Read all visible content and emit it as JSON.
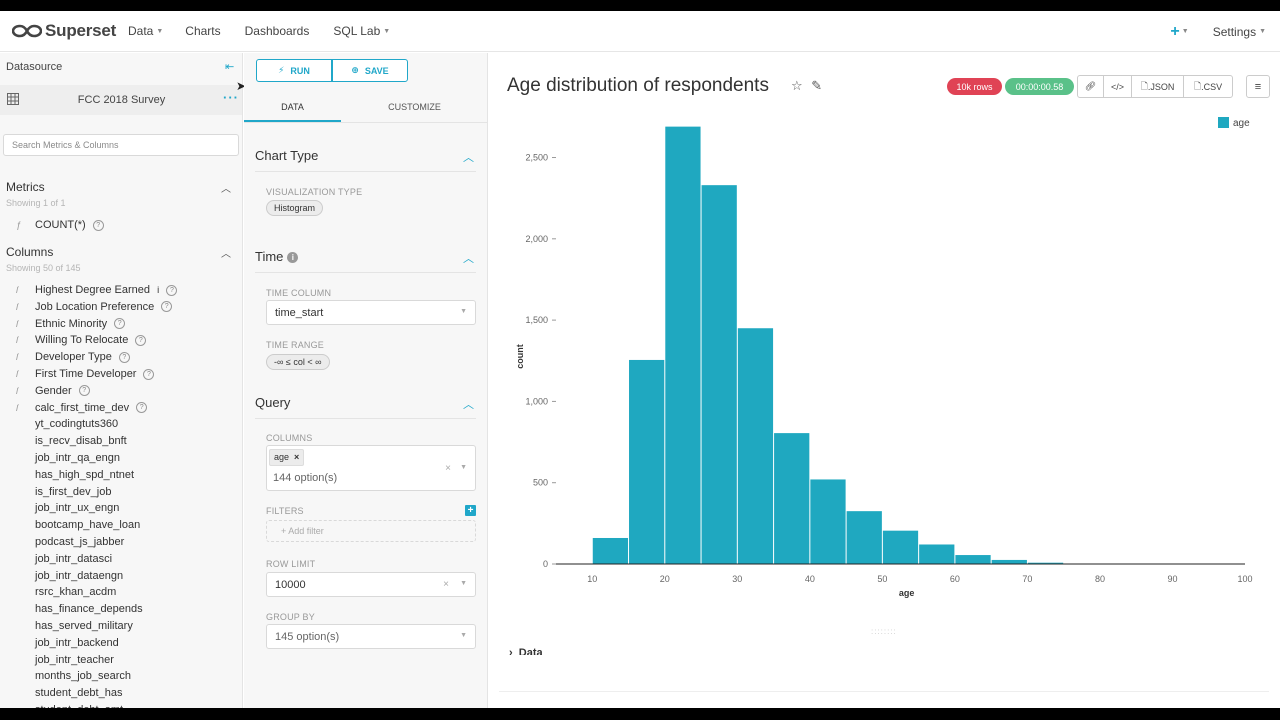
{
  "nav": {
    "brand": "Superset",
    "items": [
      {
        "label": "Data",
        "dropdown": true
      },
      {
        "label": "Charts",
        "dropdown": false
      },
      {
        "label": "Dashboards",
        "dropdown": false
      },
      {
        "label": "SQL Lab",
        "dropdown": true
      }
    ],
    "plus_label": "+",
    "settings_label": "Settings"
  },
  "datasource": {
    "header": "Datasource",
    "name": "FCC 2018 Survey",
    "search_placeholder": "Search Metrics & Columns",
    "metrics": {
      "title": "Metrics",
      "count_text": "Showing 1 of 1",
      "items": [
        "COUNT(*)"
      ]
    },
    "columns": {
      "title": "Columns",
      "count_text": "Showing 50 of 145",
      "items": [
        {
          "label": "Highest Degree Earned",
          "type": "string",
          "info": true,
          "help": true
        },
        {
          "label": "Job Location Preference",
          "type": "string",
          "info": false,
          "help": true
        },
        {
          "label": "Ethnic Minority",
          "type": "string",
          "info": false,
          "help": true
        },
        {
          "label": "Willing To Relocate",
          "type": "string",
          "info": false,
          "help": true
        },
        {
          "label": "Developer Type",
          "type": "string",
          "info": false,
          "help": true
        },
        {
          "label": "First Time Developer",
          "type": "string",
          "info": false,
          "help": true
        },
        {
          "label": "Gender",
          "type": "string",
          "info": false,
          "help": true
        },
        {
          "label": "calc_first_time_dev",
          "type": "string",
          "info": false,
          "help": true
        },
        {
          "label": "yt_codingtuts360",
          "type": "",
          "info": false,
          "help": false
        },
        {
          "label": "is_recv_disab_bnft",
          "type": "",
          "info": false,
          "help": false
        },
        {
          "label": "job_intr_qa_engn",
          "type": "",
          "info": false,
          "help": false
        },
        {
          "label": "has_high_spd_ntnet",
          "type": "",
          "info": false,
          "help": false
        },
        {
          "label": "is_first_dev_job",
          "type": "",
          "info": false,
          "help": false
        },
        {
          "label": "job_intr_ux_engn",
          "type": "",
          "info": false,
          "help": false
        },
        {
          "label": "bootcamp_have_loan",
          "type": "",
          "info": false,
          "help": false
        },
        {
          "label": "podcast_js_jabber",
          "type": "",
          "info": false,
          "help": false
        },
        {
          "label": "job_intr_datasci",
          "type": "",
          "info": false,
          "help": false
        },
        {
          "label": "job_intr_dataengn",
          "type": "",
          "info": false,
          "help": false
        },
        {
          "label": "rsrc_khan_acdm",
          "type": "",
          "info": false,
          "help": false
        },
        {
          "label": "has_finance_depends",
          "type": "",
          "info": false,
          "help": false
        },
        {
          "label": "has_served_military",
          "type": "",
          "info": false,
          "help": false
        },
        {
          "label": "job_intr_backend",
          "type": "",
          "info": false,
          "help": false
        },
        {
          "label": "job_intr_teacher",
          "type": "",
          "info": false,
          "help": false
        },
        {
          "label": "months_job_search",
          "type": "",
          "info": false,
          "help": false
        },
        {
          "label": "student_debt_has",
          "type": "",
          "info": false,
          "help": false
        },
        {
          "label": "student_debt_amt",
          "type": "",
          "info": false,
          "help": false
        }
      ]
    }
  },
  "control": {
    "run_label": "RUN",
    "save_label": "SAVE",
    "tabs": [
      "DATA",
      "CUSTOMIZE"
    ],
    "chart_type": {
      "title": "Chart Type",
      "viz_label": "VISUALIZATION TYPE",
      "viz_value": "Histogram"
    },
    "time": {
      "title": "Time",
      "column_label": "TIME COLUMN",
      "column_value": "time_start",
      "range_label": "TIME RANGE",
      "range_value": "-∞ ≤ col < ∞"
    },
    "query": {
      "title": "Query",
      "columns_label": "COLUMNS",
      "columns_tag": "age",
      "columns_options": "144 option(s)",
      "filters_label": "FILTERS",
      "add_filter": "Add filter",
      "row_limit_label": "ROW LIMIT",
      "row_limit_value": "10000",
      "group_by_label": "GROUP BY",
      "group_by_placeholder": "145 option(s)"
    }
  },
  "chart": {
    "title": "Age distribution of respondents",
    "rows_badge": "10k rows",
    "time_badge": "00:00:00.58",
    "tools": [
      "",
      "",
      ".JSON",
      ".CSV"
    ],
    "data_section_label": "Data"
  },
  "colors": {
    "accent": "#20a7c9",
    "bar": "#1fa8c0",
    "rows_badge": "#e04355",
    "time_badge": "#5ac189"
  },
  "chart_data": {
    "type": "bar",
    "title": "",
    "xlabel": "age",
    "ylabel": "count",
    "legend": [
      "age"
    ],
    "legend_position": "top-right",
    "xlim": [
      5,
      100
    ],
    "ylim": [
      0,
      2700
    ],
    "x_ticks": [
      10,
      20,
      30,
      40,
      50,
      60,
      70,
      80,
      90,
      100
    ],
    "y_ticks": [
      0,
      500,
      1000,
      1500,
      2000,
      2500
    ],
    "y_tick_labels": [
      "0",
      "500",
      "1,000",
      "1,500",
      "2,000",
      "2,500"
    ],
    "bin_width": 5,
    "bins": [
      {
        "x0": 10,
        "x1": 15,
        "count": 160
      },
      {
        "x0": 15,
        "x1": 20,
        "count": 1255
      },
      {
        "x0": 20,
        "x1": 25,
        "count": 2690
      },
      {
        "x0": 25,
        "x1": 30,
        "count": 2330
      },
      {
        "x0": 30,
        "x1": 35,
        "count": 1450
      },
      {
        "x0": 35,
        "x1": 40,
        "count": 805
      },
      {
        "x0": 40,
        "x1": 45,
        "count": 520
      },
      {
        "x0": 45,
        "x1": 50,
        "count": 325
      },
      {
        "x0": 50,
        "x1": 55,
        "count": 205
      },
      {
        "x0": 55,
        "x1": 60,
        "count": 120
      },
      {
        "x0": 60,
        "x1": 65,
        "count": 55
      },
      {
        "x0": 65,
        "x1": 70,
        "count": 25
      },
      {
        "x0": 70,
        "x1": 75,
        "count": 8
      },
      {
        "x0": 75,
        "x1": 80,
        "count": 3
      },
      {
        "x0": 80,
        "x1": 85,
        "count": 2
      },
      {
        "x0": 85,
        "x1": 90,
        "count": 1
      },
      {
        "x0": 90,
        "x1": 95,
        "count": 1
      },
      {
        "x0": 95,
        "x1": 100,
        "count": 1
      }
    ]
  }
}
